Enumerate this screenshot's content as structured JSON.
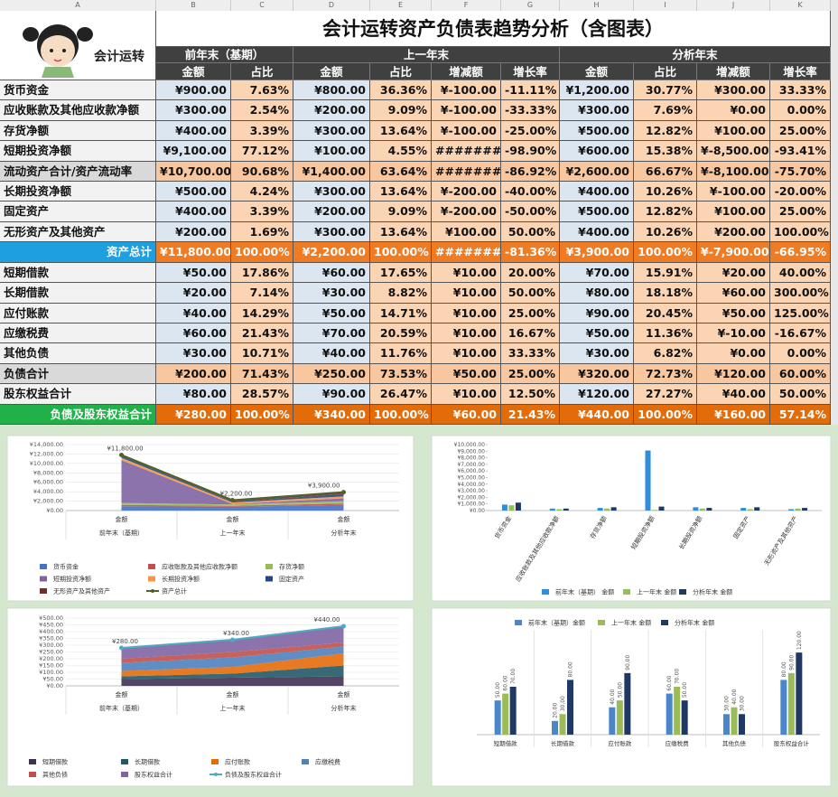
{
  "sheet": {
    "columns": [
      "A",
      "B",
      "C",
      "D",
      "E",
      "F",
      "G",
      "H",
      "I",
      "J",
      "K"
    ]
  },
  "header": {
    "logo_text": "会计运转",
    "title": "会计运转资产负债表趋势分析（含图表）",
    "groups": [
      "前年末（基期）",
      "上一年末",
      "分析年末"
    ],
    "subheaders": [
      "金额",
      "占比",
      "金额",
      "占比",
      "增减额",
      "增长率",
      "金额",
      "占比",
      "增减额",
      "增长率"
    ]
  },
  "table": {
    "rows": [
      [
        "货币资金",
        "¥900.00",
        "7.63%",
        "¥800.00",
        "36.36%",
        "¥-100.00",
        "-11.11%",
        "¥1,200.00",
        "30.77%",
        "¥300.00",
        "33.33%"
      ],
      [
        "应收账款及其他应收款净额",
        "¥300.00",
        "2.54%",
        "¥200.00",
        "9.09%",
        "¥-100.00",
        "-33.33%",
        "¥300.00",
        "7.69%",
        "¥0.00",
        "0.00%"
      ],
      [
        "存货净额",
        "¥400.00",
        "3.39%",
        "¥300.00",
        "13.64%",
        "¥-100.00",
        "-25.00%",
        "¥500.00",
        "12.82%",
        "¥100.00",
        "25.00%"
      ],
      [
        "短期投资净额",
        "¥9,100.00",
        "77.12%",
        "¥100.00",
        "4.55%",
        "########",
        "-98.90%",
        "¥600.00",
        "15.38%",
        "¥-8,500.00",
        "-93.41%"
      ],
      [
        "流动资产合计/资产流动率",
        "¥10,700.00",
        "90.68%",
        "¥1,400.00",
        "63.64%",
        "########",
        "-86.92%",
        "¥2,600.00",
        "66.67%",
        "¥-8,100.00",
        "-75.70%"
      ],
      [
        "长期投资净额",
        "¥500.00",
        "4.24%",
        "¥300.00",
        "13.64%",
        "¥-200.00",
        "-40.00%",
        "¥400.00",
        "10.26%",
        "¥-100.00",
        "-20.00%"
      ],
      [
        "固定资产",
        "¥400.00",
        "3.39%",
        "¥200.00",
        "9.09%",
        "¥-200.00",
        "-50.00%",
        "¥500.00",
        "12.82%",
        "¥100.00",
        "25.00%"
      ],
      [
        "无形资产及其他资产",
        "¥200.00",
        "1.69%",
        "¥300.00",
        "13.64%",
        "¥100.00",
        "50.00%",
        "¥400.00",
        "10.26%",
        "¥200.00",
        "100.00%"
      ],
      [
        "资产总计",
        "¥11,800.00",
        "100.00%",
        "¥2,200.00",
        "100.00%",
        "########",
        "-81.36%",
        "¥3,900.00",
        "100.00%",
        "¥-7,900.00",
        "-66.95%"
      ],
      [
        "短期借款",
        "¥50.00",
        "17.86%",
        "¥60.00",
        "17.65%",
        "¥10.00",
        "20.00%",
        "¥70.00",
        "15.91%",
        "¥20.00",
        "40.00%"
      ],
      [
        "长期借款",
        "¥20.00",
        "7.14%",
        "¥30.00",
        "8.82%",
        "¥10.00",
        "50.00%",
        "¥80.00",
        "18.18%",
        "¥60.00",
        "300.00%"
      ],
      [
        "应付账款",
        "¥40.00",
        "14.29%",
        "¥50.00",
        "14.71%",
        "¥10.00",
        "25.00%",
        "¥90.00",
        "20.45%",
        "¥50.00",
        "125.00%"
      ],
      [
        "应缴税费",
        "¥60.00",
        "21.43%",
        "¥70.00",
        "20.59%",
        "¥10.00",
        "16.67%",
        "¥50.00",
        "11.36%",
        "¥-10.00",
        "-16.67%"
      ],
      [
        "其他负债",
        "¥30.00",
        "10.71%",
        "¥40.00",
        "11.76%",
        "¥10.00",
        "33.33%",
        "¥30.00",
        "6.82%",
        "¥0.00",
        "0.00%"
      ],
      [
        "负债合计",
        "¥200.00",
        "71.43%",
        "¥250.00",
        "73.53%",
        "¥50.00",
        "25.00%",
        "¥320.00",
        "72.73%",
        "¥120.00",
        "60.00%"
      ],
      [
        "股东权益合计",
        "¥80.00",
        "28.57%",
        "¥90.00",
        "26.47%",
        "¥10.00",
        "12.50%",
        "¥120.00",
        "27.27%",
        "¥40.00",
        "50.00%"
      ],
      [
        "负债及股东权益合计",
        "¥280.00",
        "100.00%",
        "¥340.00",
        "100.00%",
        "¥60.00",
        "21.43%",
        "¥440.00",
        "100.00%",
        "¥160.00",
        "57.14%"
      ]
    ]
  },
  "chart_data": [
    {
      "type": "area",
      "categories": [
        "金额",
        "金额",
        "金额"
      ],
      "groups": [
        "前年末（基期）",
        "上一年末",
        "分析年末"
      ],
      "ylim": [
        0,
        14000
      ],
      "grid": true,
      "yticks": [
        {
          "value": 0,
          "label": "¥0.00"
        },
        {
          "value": 2000,
          "label": "¥2,000.00"
        },
        {
          "value": 4000,
          "label": "¥4,000.00"
        },
        {
          "value": 6000,
          "label": "¥6,000.00"
        },
        {
          "value": 8000,
          "label": "¥8,000.00"
        },
        {
          "value": 10000,
          "label": "¥10,000.00"
        },
        {
          "value": 12000,
          "label": "¥12,000.00"
        },
        {
          "value": 14000,
          "label": "¥14,000.00"
        }
      ],
      "series": [
        {
          "name": "货币资金",
          "color": "#4472c4",
          "values": [
            900,
            800,
            1200
          ]
        },
        {
          "name": "应收账款及其他应收款净额",
          "color": "#c0504d",
          "values": [
            300,
            200,
            300
          ]
        },
        {
          "name": "存货净额",
          "color": "#9bbb59",
          "values": [
            400,
            300,
            500
          ]
        },
        {
          "name": "短期投资净额",
          "color": "#8064a2",
          "values": [
            9100,
            100,
            600
          ]
        },
        {
          "name": "长期投资净额",
          "color": "#f79646",
          "values": [
            500,
            300,
            400
          ]
        },
        {
          "name": "固定资产",
          "color": "#1f497d",
          "values": [
            400,
            200,
            500
          ]
        },
        {
          "name": "无形资产及其他资产",
          "color": "#772c2a",
          "values": [
            200,
            300,
            400
          ]
        },
        {
          "name": "资产总计",
          "color": "#4f6228",
          "kind": "line",
          "values": [
            11800,
            2200,
            3900
          ],
          "value_labels": [
            "¥11,800.00",
            "¥2,200.00",
            "¥3,900.00"
          ]
        }
      ],
      "legend": "bottom"
    },
    {
      "type": "bar",
      "categories": [
        "货币资金",
        "应收账款及其他应收款净额",
        "存货净额",
        "短期投资净额",
        "长期投资净额",
        "固定资产",
        "无形资产及其他资产"
      ],
      "ylim": [
        0,
        10000
      ],
      "grid": false,
      "yticks": [
        {
          "value": 0,
          "label": "¥0.00"
        },
        {
          "value": 1000,
          "label": "¥1,000.00"
        },
        {
          "value": 2000,
          "label": "¥2,000.00"
        },
        {
          "value": 3000,
          "label": "¥3,000.00"
        },
        {
          "value": 4000,
          "label": "¥4,000.00"
        },
        {
          "value": 5000,
          "label": "¥5,000.00"
        },
        {
          "value": 6000,
          "label": "¥6,000.00"
        },
        {
          "value": 7000,
          "label": "¥7,000.00"
        },
        {
          "value": 8000,
          "label": "¥8,000.00"
        },
        {
          "value": 9000,
          "label": "¥9,000.00"
        },
        {
          "value": 10000,
          "label": "¥10,000.00"
        }
      ],
      "series": [
        {
          "name": "前年末（基期） 金额",
          "color": "#2e8ede",
          "values": [
            900,
            300,
            400,
            9100,
            500,
            400,
            200
          ]
        },
        {
          "name": "上一年末 金额",
          "color": "#92c05a",
          "values": [
            800,
            200,
            300,
            100,
            300,
            200,
            300
          ]
        },
        {
          "name": "分析年末 金额",
          "color": "#1f3a60",
          "values": [
            1200,
            300,
            500,
            600,
            400,
            500,
            400
          ]
        }
      ],
      "legend": "bottom"
    },
    {
      "type": "area",
      "categories": [
        "金额",
        "金额",
        "金额"
      ],
      "groups": [
        "前年末（基期）",
        "上一年末",
        "分析年末"
      ],
      "ylim": [
        0,
        500
      ],
      "grid": true,
      "yticks": [
        {
          "value": 0,
          "label": "¥0.00"
        },
        {
          "value": 50,
          "label": "¥50.00"
        },
        {
          "value": 100,
          "label": "¥100.00"
        },
        {
          "value": 150,
          "label": "¥150.00"
        },
        {
          "value": 200,
          "label": "¥200.00"
        },
        {
          "value": 250,
          "label": "¥250.00"
        },
        {
          "value": 300,
          "label": "¥300.00"
        },
        {
          "value": 350,
          "label": "¥350.00"
        },
        {
          "value": 400,
          "label": "¥400.00"
        },
        {
          "value": 450,
          "label": "¥450.00"
        },
        {
          "value": 500,
          "label": "¥500.00"
        }
      ],
      "series": [
        {
          "name": "短期借款",
          "color": "#403152",
          "values": [
            50,
            60,
            70
          ]
        },
        {
          "name": "长期借款",
          "color": "#215968",
          "values": [
            20,
            30,
            80
          ]
        },
        {
          "name": "应付账款",
          "color": "#e46c0a",
          "values": [
            40,
            50,
            90
          ]
        },
        {
          "name": "应缴税费",
          "color": "#4f81bd",
          "values": [
            60,
            70,
            50
          ]
        },
        {
          "name": "其他负债",
          "color": "#c0504d",
          "values": [
            30,
            40,
            30
          ]
        },
        {
          "name": "股东权益合计",
          "color": "#8064a2",
          "values": [
            80,
            90,
            120
          ]
        },
        {
          "name": "负债及股东权益合计",
          "color": "#4bacc6",
          "kind": "line",
          "values": [
            280,
            340,
            440
          ],
          "value_labels": [
            "¥280.00",
            "¥340.00",
            "¥440.00"
          ]
        }
      ],
      "legend": "bottom"
    },
    {
      "type": "bar",
      "categories": [
        "短期借款",
        "长期借款",
        "应付账款",
        "应缴税费",
        "其他负债",
        "股东权益合计"
      ],
      "ylim": [
        0,
        140
      ],
      "grid": false,
      "series": [
        {
          "name": "前年末（基期）金额",
          "color": "#4a86c8",
          "values": [
            50,
            20,
            40,
            60,
            30,
            80
          ],
          "value_labels": [
            "50.00",
            "20.00",
            "40.00",
            "60.00",
            "30.00",
            "80.00"
          ]
        },
        {
          "name": "上一年末 金额",
          "color": "#9bbb59",
          "values": [
            60,
            30,
            50,
            70,
            40,
            90
          ],
          "value_labels": [
            "60.00",
            "30.00",
            "50.00",
            "70.00",
            "40.00",
            "90.00"
          ]
        },
        {
          "name": "分析年末 金额",
          "color": "#1f3864",
          "values": [
            70,
            80,
            90,
            50,
            30,
            120
          ],
          "value_labels": [
            "70.00",
            "80.00",
            "90.00",
            "50.00",
            "30.00",
            "120.00"
          ]
        }
      ],
      "legend": "top"
    }
  ]
}
